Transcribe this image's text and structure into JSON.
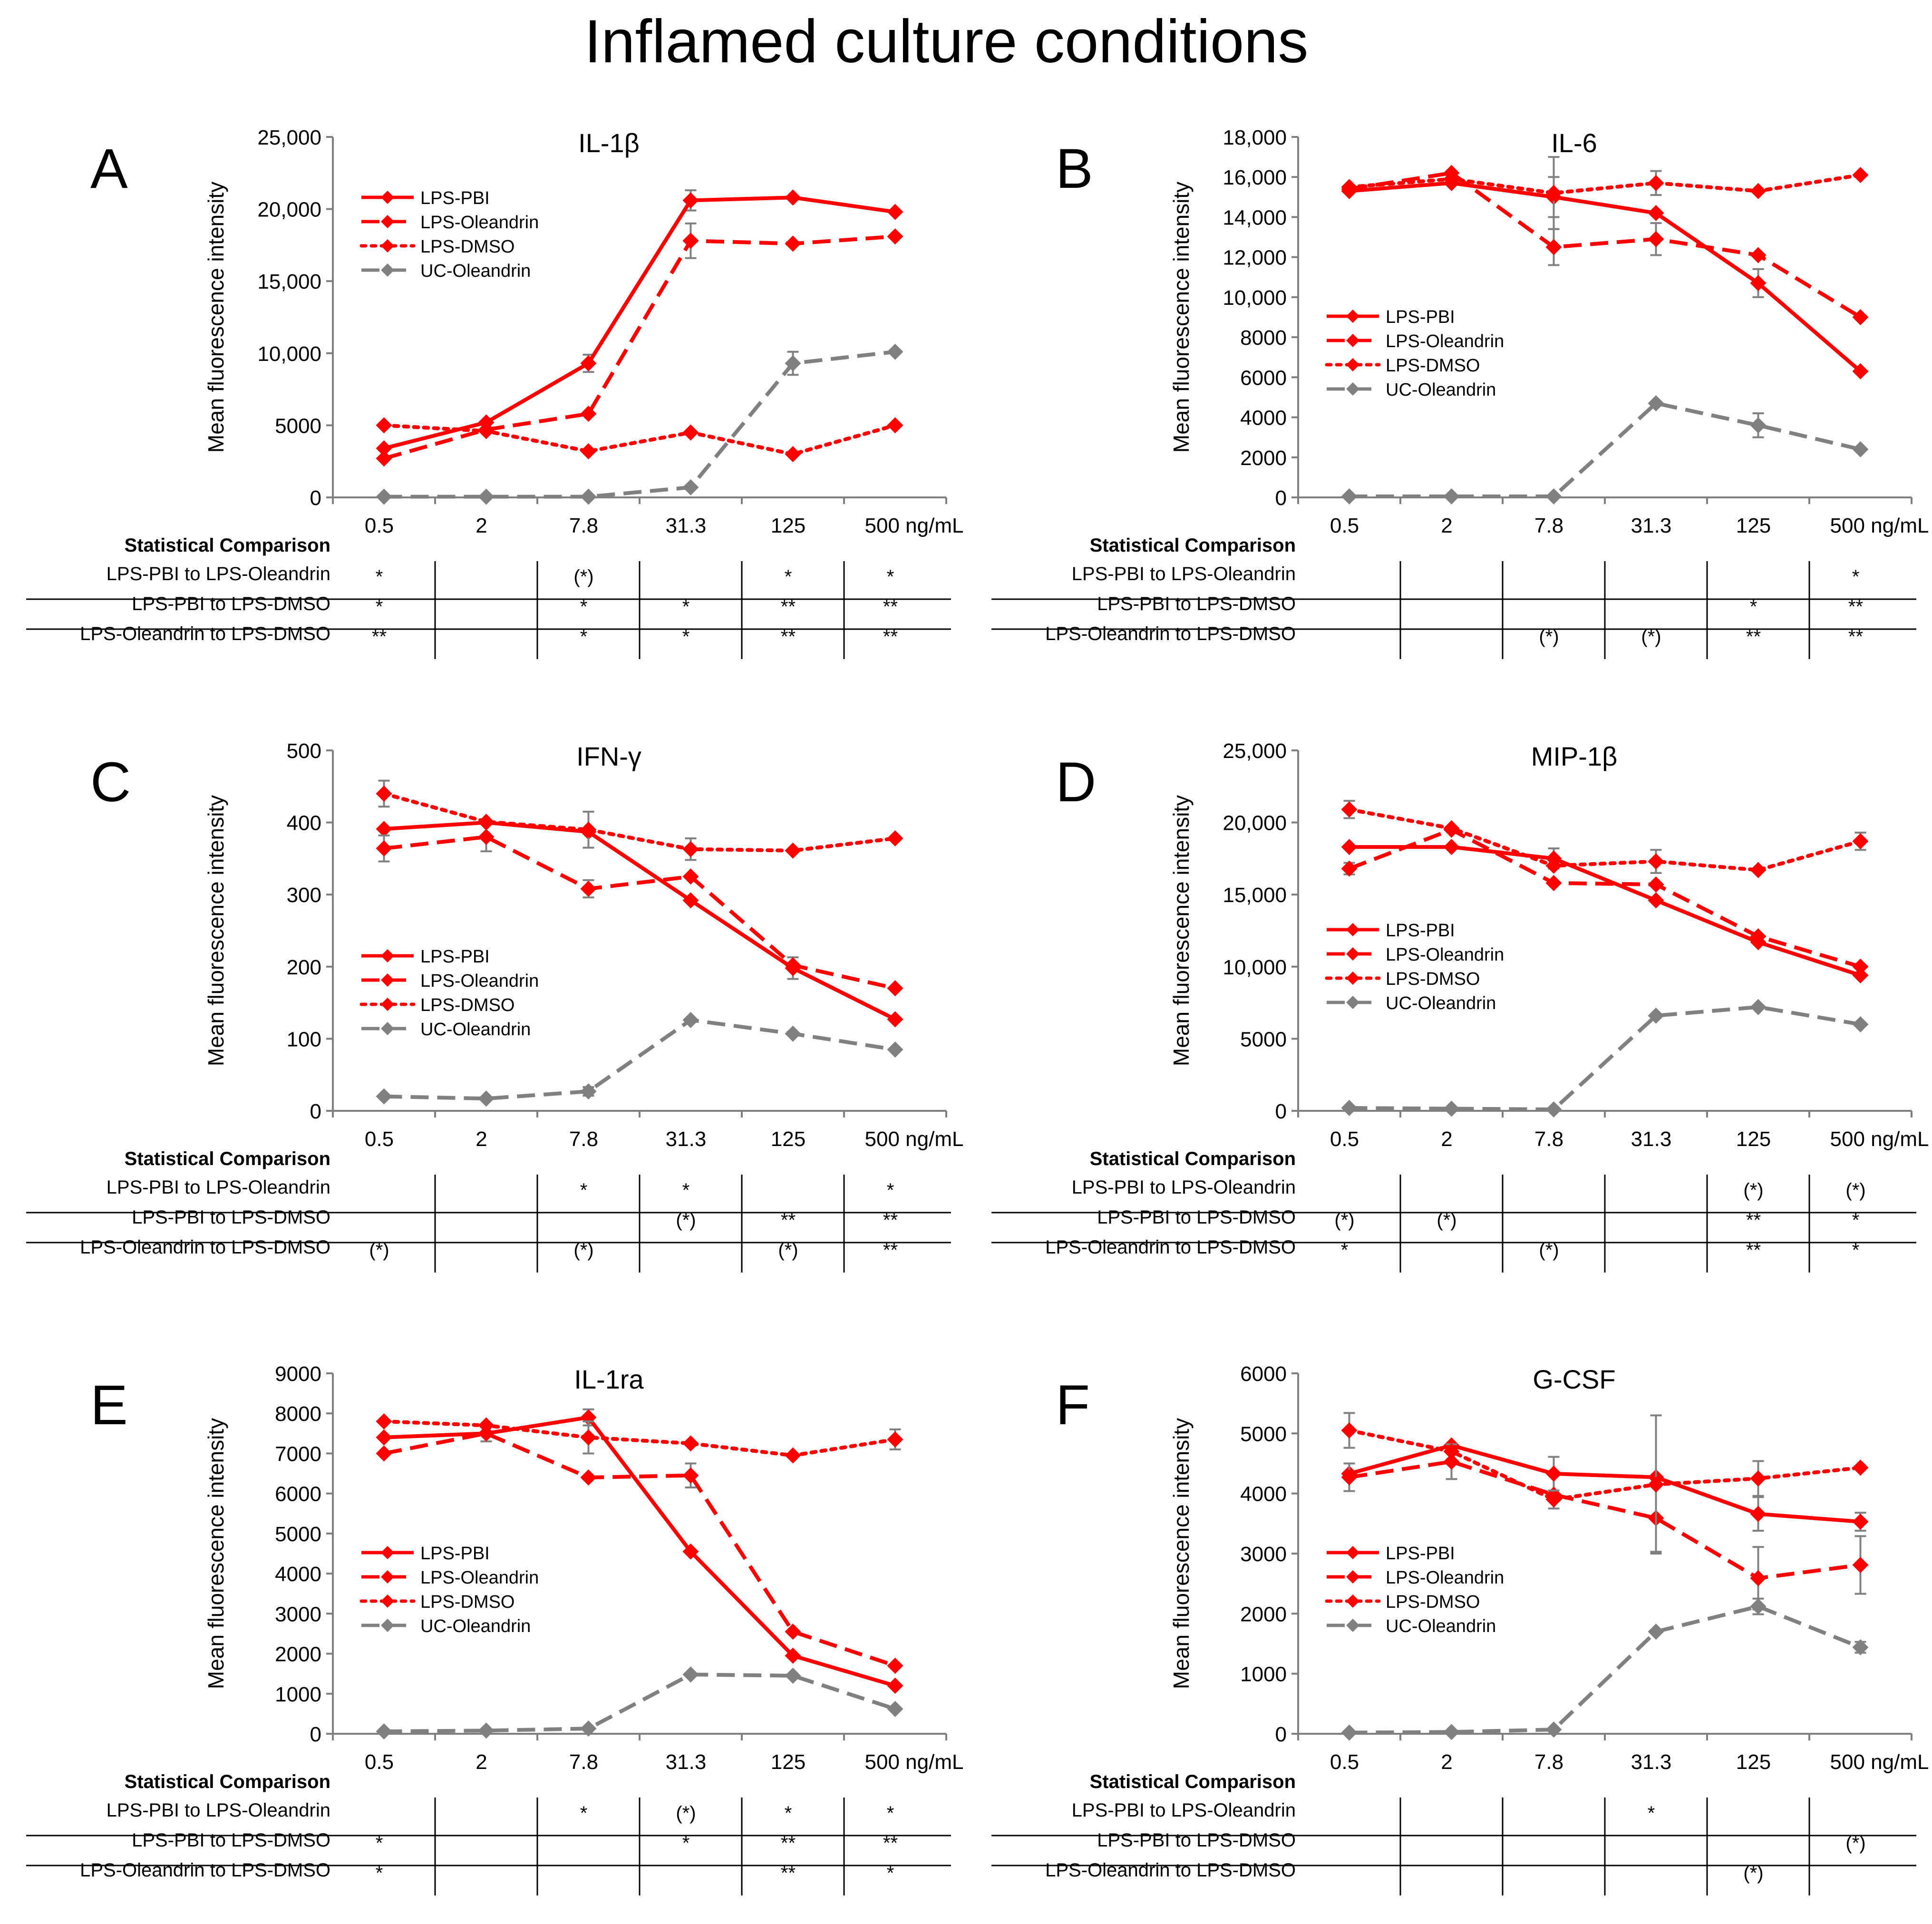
{
  "title": "Inflamed culture conditions",
  "colors": {
    "red": "#ff0000",
    "gray": "#808080",
    "axis": "#7f7f7f",
    "text": "#000000"
  },
  "stat_header": "Statistical Comparison",
  "stat_row_labels": [
    "LPS-PBI to LPS-Oleandrin",
    "LPS-PBI to LPS-DMSO",
    "LPS-Oleandrin to LPS-DMSO"
  ],
  "chart_data": [
    {
      "panel": "A",
      "type": "line",
      "title": "IL-1β",
      "xlabel": "",
      "ylabel": "Mean fluorescence intensity",
      "categories": [
        "0.5",
        "2",
        "7.8",
        "31.3",
        "125",
        "500 ng/mL"
      ],
      "ylim": [
        0,
        25000
      ],
      "yticks": [
        0,
        5000,
        10000,
        15000,
        20000,
        25000
      ],
      "ytick_labels": [
        "0",
        "5000",
        "10,000",
        "15,000",
        "20,000",
        "25,000"
      ],
      "legend_position": "top-left",
      "series": [
        {
          "name": "LPS-PBI",
          "color": "#ff0000",
          "dash": "solid",
          "values": [
            3400,
            5200,
            9300,
            20600,
            20800,
            19800
          ],
          "errors": [
            0,
            0,
            600,
            700,
            0,
            0
          ]
        },
        {
          "name": "LPS-Oleandrin",
          "color": "#ff0000",
          "dash": "dashed",
          "values": [
            2700,
            4700,
            5800,
            17800,
            17600,
            18100
          ],
          "errors": [
            0,
            0,
            0,
            1200,
            0,
            0
          ]
        },
        {
          "name": "LPS-DMSO",
          "color": "#ff0000",
          "dash": "dotted",
          "values": [
            5000,
            4600,
            3200,
            4500,
            3000,
            5000
          ],
          "errors": [
            0,
            0,
            0,
            0,
            0,
            0
          ]
        },
        {
          "name": "UC-Oleandrin",
          "color": "#808080",
          "dash": "dashed",
          "values": [
            50,
            50,
            50,
            700,
            9300,
            10100
          ],
          "errors": [
            0,
            0,
            0,
            0,
            800,
            0
          ]
        }
      ],
      "stats": [
        [
          "*",
          "",
          "(*)",
          "",
          "*",
          "*"
        ],
        [
          "*",
          "",
          "*",
          "*",
          "**",
          "**"
        ],
        [
          "**",
          "",
          "*",
          "*",
          "**",
          "**"
        ]
      ]
    },
    {
      "panel": "B",
      "type": "line",
      "title": "IL-6",
      "xlabel": "",
      "ylabel": "Mean fluorescence intensity",
      "categories": [
        "0.5",
        "2",
        "7.8",
        "31.3",
        "125",
        "500 ng/mL"
      ],
      "ylim": [
        0,
        18000
      ],
      "yticks": [
        0,
        2000,
        4000,
        6000,
        8000,
        10000,
        12000,
        14000,
        16000,
        18000
      ],
      "ytick_labels": [
        "0",
        "2000",
        "4000",
        "6000",
        "8000",
        "10,000",
        "12,000",
        "14,000",
        "16,000",
        "18,000"
      ],
      "legend_position": "center-left",
      "series": [
        {
          "name": "LPS-PBI",
          "color": "#ff0000",
          "dash": "solid",
          "values": [
            15300,
            15700,
            15000,
            14200,
            10700,
            6300
          ],
          "errors": [
            0,
            0,
            1000,
            0,
            700,
            0
          ]
        },
        {
          "name": "LPS-Oleandrin",
          "color": "#ff0000",
          "dash": "dashed",
          "values": [
            15400,
            16200,
            12500,
            12900,
            12100,
            9000
          ],
          "errors": [
            0,
            0,
            900,
            800,
            0,
            0
          ]
        },
        {
          "name": "LPS-DMSO",
          "color": "#ff0000",
          "dash": "dotted",
          "values": [
            15500,
            15900,
            15200,
            15700,
            15300,
            16100
          ],
          "errors": [
            0,
            0,
            1800,
            600,
            0,
            0
          ]
        },
        {
          "name": "UC-Oleandrin",
          "color": "#808080",
          "dash": "dashed",
          "values": [
            50,
            50,
            50,
            4700,
            3600,
            2400
          ],
          "errors": [
            0,
            0,
            0,
            0,
            600,
            0
          ]
        }
      ],
      "stats": [
        [
          "",
          "",
          "",
          "",
          "",
          "*"
        ],
        [
          "",
          "",
          "",
          "",
          "*",
          "**"
        ],
        [
          "",
          "",
          "(*)",
          "(*)",
          "**",
          "**"
        ]
      ]
    },
    {
      "panel": "C",
      "type": "line",
      "title": "IFN-γ",
      "xlabel": "",
      "ylabel": "Mean fluorescence intensity",
      "categories": [
        "0.5",
        "2",
        "7.8",
        "31.3",
        "125",
        "500 ng/mL"
      ],
      "ylim": [
        0,
        500
      ],
      "yticks": [
        0,
        100,
        200,
        300,
        400,
        500
      ],
      "ytick_labels": [
        "0",
        "100",
        "200",
        "300",
        "400",
        "500"
      ],
      "legend_position": "bottom-left",
      "series": [
        {
          "name": "LPS-PBI",
          "color": "#ff0000",
          "dash": "solid",
          "values": [
            391,
            400,
            387,
            292,
            198,
            127
          ],
          "errors": [
            0,
            0,
            0,
            0,
            15,
            0
          ]
        },
        {
          "name": "LPS-Oleandrin",
          "color": "#ff0000",
          "dash": "dashed",
          "values": [
            364,
            380,
            308,
            325,
            202,
            170
          ],
          "errors": [
            18,
            20,
            12,
            0,
            0,
            0
          ]
        },
        {
          "name": "LPS-DMSO",
          "color": "#ff0000",
          "dash": "dotted",
          "values": [
            440,
            401,
            390,
            363,
            361,
            378
          ],
          "errors": [
            18,
            0,
            25,
            15,
            0,
            0
          ]
        },
        {
          "name": "UC-Oleandrin",
          "color": "#808080",
          "dash": "dashed",
          "values": [
            20,
            17,
            27,
            126,
            107,
            85
          ],
          "errors": [
            0,
            0,
            6,
            0,
            0,
            0
          ]
        }
      ],
      "stats": [
        [
          "",
          "",
          "*",
          "*",
          "",
          "*"
        ],
        [
          "",
          "",
          "",
          "(*)",
          "**",
          "**"
        ],
        [
          "(*)",
          "",
          "(*)",
          "",
          "(*)",
          "**"
        ]
      ]
    },
    {
      "panel": "D",
      "type": "line",
      "title": "MIP-1β",
      "xlabel": "",
      "ylabel": "Mean fluorescence intensity",
      "categories": [
        "0.5",
        "2",
        "7.8",
        "31.3",
        "125",
        "500 ng/mL"
      ],
      "ylim": [
        0,
        25000
      ],
      "yticks": [
        0,
        5000,
        10000,
        15000,
        20000,
        25000
      ],
      "ytick_labels": [
        "0",
        "5000",
        "10,000",
        "15,000",
        "20,000",
        "25,000"
      ],
      "legend_position": "center-left",
      "series": [
        {
          "name": "LPS-PBI",
          "color": "#ff0000",
          "dash": "solid",
          "values": [
            18300,
            18300,
            17500,
            14600,
            11700,
            9400
          ],
          "errors": [
            0,
            0,
            700,
            0,
            0,
            0
          ]
        },
        {
          "name": "LPS-Oleandrin",
          "color": "#ff0000",
          "dash": "dashed",
          "values": [
            16800,
            19500,
            15800,
            15700,
            12100,
            10000
          ],
          "errors": [
            400,
            0,
            0,
            0,
            0,
            0
          ]
        },
        {
          "name": "LPS-DMSO",
          "color": "#ff0000",
          "dash": "dotted",
          "values": [
            20900,
            19600,
            17000,
            17300,
            16700,
            18700
          ],
          "errors": [
            600,
            0,
            0,
            800,
            0,
            600
          ]
        },
        {
          "name": "UC-Oleandrin",
          "color": "#808080",
          "dash": "dashed",
          "values": [
            200,
            150,
            100,
            6600,
            7200,
            6000
          ],
          "errors": [
            0,
            0,
            0,
            0,
            0,
            0
          ]
        }
      ],
      "stats": [
        [
          "",
          "",
          "",
          "",
          "(*)",
          "(*)"
        ],
        [
          "(*)",
          "(*)",
          "",
          "",
          "**",
          "*"
        ],
        [
          "*",
          "",
          "(*)",
          "",
          "**",
          "*"
        ]
      ]
    },
    {
      "panel": "E",
      "type": "line",
      "title": "IL-1ra",
      "xlabel": "",
      "ylabel": "Mean fluorescence intensity",
      "categories": [
        "0.5",
        "2",
        "7.8",
        "31.3",
        "125",
        "500 ng/mL"
      ],
      "ylim": [
        0,
        9000
      ],
      "yticks": [
        0,
        1000,
        2000,
        3000,
        4000,
        5000,
        6000,
        7000,
        8000,
        9000
      ],
      "ytick_labels": [
        "0",
        "1000",
        "2000",
        "3000",
        "4000",
        "5000",
        "6000",
        "7000",
        "8000",
        "9000"
      ],
      "legend_position": "center-left",
      "series": [
        {
          "name": "LPS-PBI",
          "color": "#ff0000",
          "dash": "solid",
          "values": [
            7400,
            7500,
            7900,
            4550,
            1950,
            1200
          ],
          "errors": [
            0,
            0,
            200,
            0,
            0,
            0
          ]
        },
        {
          "name": "LPS-Oleandrin",
          "color": "#ff0000",
          "dash": "dashed",
          "values": [
            7000,
            7500,
            6400,
            6450,
            2550,
            1700
          ],
          "errors": [
            0,
            200,
            0,
            300,
            0,
            0
          ]
        },
        {
          "name": "LPS-DMSO",
          "color": "#ff0000",
          "dash": "dotted",
          "values": [
            7800,
            7700,
            7400,
            7250,
            6950,
            7350
          ],
          "errors": [
            0,
            0,
            400,
            0,
            0,
            250
          ]
        },
        {
          "name": "UC-Oleandrin",
          "color": "#808080",
          "dash": "dashed",
          "values": [
            60,
            80,
            130,
            1480,
            1450,
            620
          ],
          "errors": [
            0,
            0,
            0,
            0,
            0,
            0
          ]
        }
      ],
      "stats": [
        [
          "",
          "",
          "*",
          "(*)",
          "*",
          "*"
        ],
        [
          "*",
          "",
          "",
          "*",
          "**",
          "**"
        ],
        [
          "*",
          "",
          "",
          "",
          "**",
          "*"
        ]
      ]
    },
    {
      "panel": "F",
      "type": "line",
      "title": "G-CSF",
      "xlabel": "",
      "ylabel": "Mean fluorescence intensity",
      "categories": [
        "0.5",
        "2",
        "7.8",
        "31.3",
        "125",
        "500 ng/mL"
      ],
      "ylim": [
        0,
        6000
      ],
      "yticks": [
        0,
        1000,
        2000,
        3000,
        4000,
        5000,
        6000
      ],
      "ytick_labels": [
        "0",
        "1000",
        "2000",
        "3000",
        "4000",
        "5000",
        "6000"
      ],
      "legend_position": "center-left",
      "series": [
        {
          "name": "LPS-PBI",
          "color": "#ff0000",
          "dash": "solid",
          "values": [
            4330,
            4800,
            4330,
            4270,
            3660,
            3530
          ],
          "errors": [
            0,
            0,
            280,
            0,
            280,
            150
          ]
        },
        {
          "name": "LPS-Oleandrin",
          "color": "#ff0000",
          "dash": "dashed",
          "values": [
            4270,
            4530,
            3980,
            3590,
            2590,
            2810
          ],
          "errors": [
            230,
            290,
            0,
            560,
            520,
            480
          ]
        },
        {
          "name": "LPS-DMSO",
          "color": "#ff0000",
          "dash": "dotted",
          "values": [
            5050,
            4700,
            3900,
            4150,
            4250,
            4430
          ],
          "errors": [
            290,
            0,
            150,
            1150,
            290,
            0
          ]
        },
        {
          "name": "UC-Oleandrin",
          "color": "#808080",
          "dash": "dashed",
          "values": [
            20,
            30,
            70,
            1700,
            2120,
            1440
          ],
          "errors": [
            0,
            0,
            0,
            0,
            130,
            90
          ]
        }
      ],
      "stats": [
        [
          "",
          "",
          "",
          "*",
          "",
          ""
        ],
        [
          "",
          "",
          "",
          "",
          "",
          "(*)"
        ],
        [
          "",
          "",
          "",
          "",
          "(*)",
          ""
        ]
      ]
    }
  ]
}
